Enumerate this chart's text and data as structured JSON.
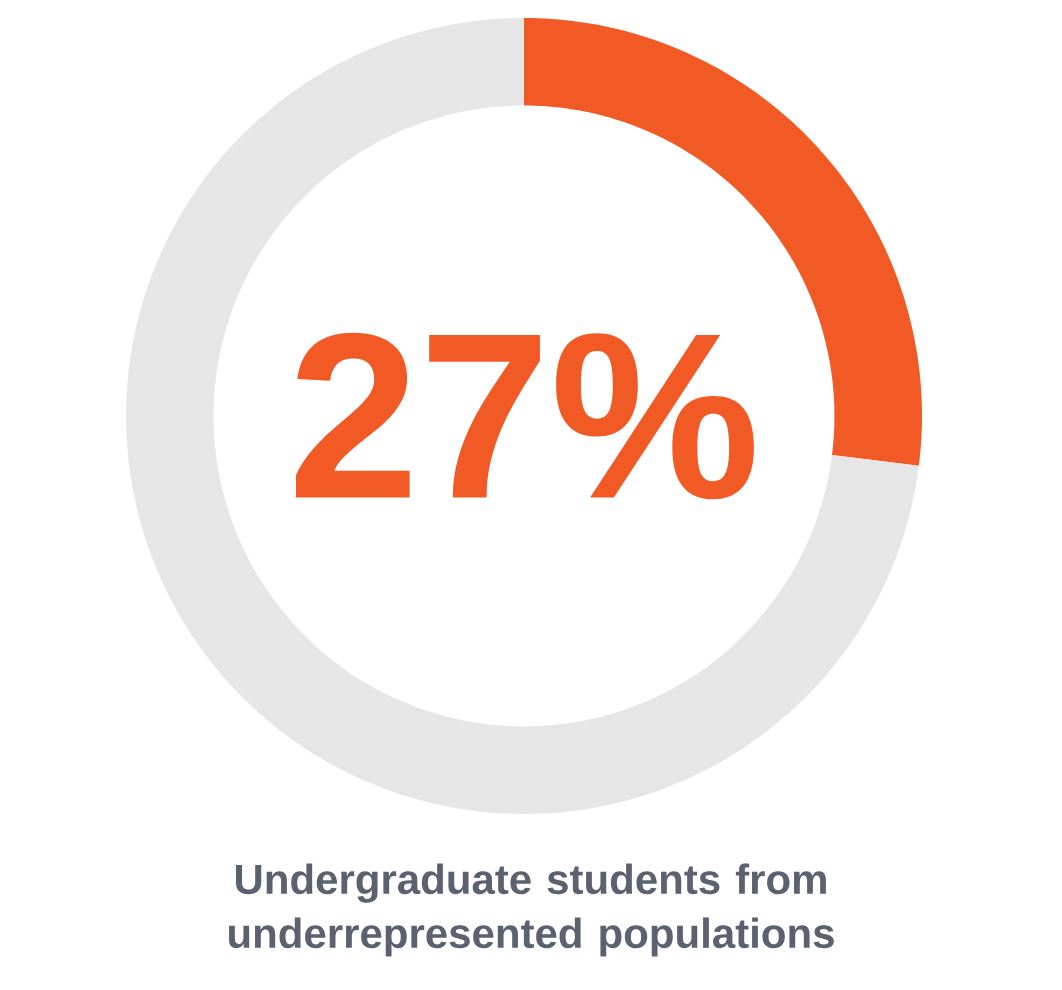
{
  "chart_data": {
    "type": "donut",
    "title": "Undergraduate students from underrepresented populations",
    "categories": [
      null,
      null
    ],
    "values": [
      27,
      73
    ],
    "colors": [
      "#f15a24",
      "#e6e6e6"
    ],
    "value_labels": [
      "27%",
      null
    ]
  }
}
